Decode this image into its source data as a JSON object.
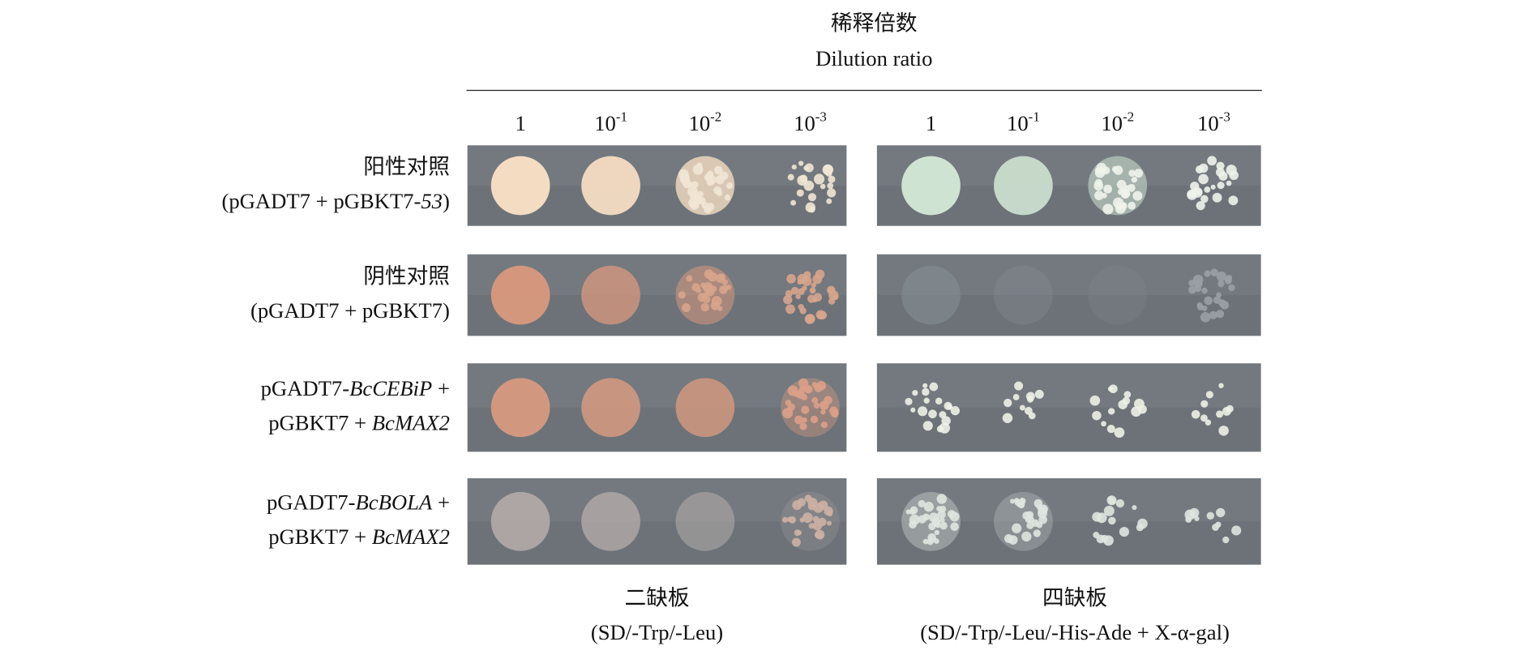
{
  "title": "稀释倍数",
  "subtitle": "Dilution ratio",
  "dilutions": [
    {
      "base": "1"
    },
    {
      "base": "10",
      "exp": "-1"
    },
    {
      "base": "10",
      "exp": "-2"
    },
    {
      "base": "10",
      "exp": "-3"
    }
  ],
  "rows": [
    {
      "label": [
        [
          {
            "text": "阳性对照"
          }
        ],
        [
          {
            "text": "(pGADT7 + pGBKT7-"
          },
          {
            "text": "53",
            "italic": true
          },
          {
            "text": ")"
          }
        ]
      ]
    },
    {
      "label": [
        [
          {
            "text": "阴性对照"
          }
        ],
        [
          {
            "text": "(pGADT7 + pGBKT7)"
          }
        ]
      ]
    },
    {
      "label": [
        [
          {
            "text": "pGADT7-"
          },
          {
            "text": "BcCEBiP",
            "italic": true
          },
          {
            "text": " +"
          }
        ],
        [
          {
            "text": "pGBKT7 + "
          },
          {
            "text": "BcMAX2",
            "italic": true
          }
        ]
      ]
    },
    {
      "label": [
        [
          {
            "text": "pGADT7-"
          },
          {
            "text": "BcBOLA",
            "italic": true
          },
          {
            "text": " +"
          }
        ],
        [
          {
            "text": "pGBKT7 + "
          },
          {
            "text": "BcMAX2",
            "italic": true
          }
        ]
      ]
    }
  ],
  "plates": [
    {
      "name": "二缺板",
      "medium": "(SD/-Trp/-Leu)"
    },
    {
      "name": "四缺板",
      "medium": "(SD/-Trp/-Leu/-His-Ade + X-α-gal)"
    }
  ]
}
